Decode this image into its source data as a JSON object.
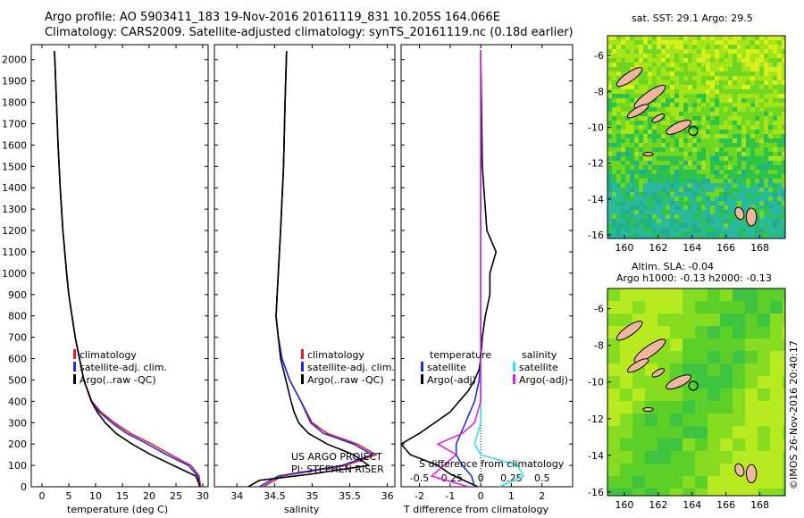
{
  "header": {
    "line1": "Argo profile: AO 5903411_183 19-Nov-2016 20161119_831 10.205S 164.066E",
    "line2": "Climatology: CARS2009. Satellite-adjusted climatology: synTS_20161119.nc (0.18d earlier)"
  },
  "colors": {
    "climatology": "#e8201c",
    "satellite": "#1a2ee0",
    "argo": "#000000",
    "sat_salinity": "#2ee6e6",
    "argo_adj_salinity": "#e020e0",
    "land": "#f0b7a0"
  },
  "project": {
    "line1": "US ARGO PROJECT",
    "line2": "PI: STEPHEN RISER"
  },
  "sst_title": "sat. SST: 29.1  Argo: 29.5",
  "sla_title1": "Altim. SLA: -0.04",
  "sla_title2": "Argo h1000: -0.13 h2000: -0.13",
  "stamp": "©IMOS 26-Nov-2016 20:40:17",
  "chart_data": [
    {
      "type": "line",
      "name": "temperature",
      "xlabel": "temperature (deg C)",
      "ylabel": "",
      "xlim": [
        -2,
        31
      ],
      "ylim": [
        2070,
        0
      ],
      "xticks": [
        0,
        5,
        10,
        15,
        20,
        25,
        30
      ],
      "yticks": [
        0,
        100,
        200,
        300,
        400,
        500,
        600,
        700,
        800,
        900,
        1000,
        1100,
        1200,
        1300,
        1400,
        1500,
        1600,
        1700,
        1800,
        1900,
        2000
      ],
      "legend": [
        "climatology",
        "satellite-adj. clim.",
        "Argo(..raw -QC)"
      ],
      "series": [
        {
          "name": "climatology",
          "depth": [
            0,
            50,
            100,
            150,
            200,
            250,
            300,
            350,
            400,
            500,
            600,
            700,
            800,
            900,
            1000,
            1200,
            1400,
            1600,
            1800,
            2000,
            2040
          ],
          "values": [
            29.6,
            29.3,
            27.8,
            24,
            20.5,
            16.5,
            13.5,
            11,
            9.3,
            7.8,
            7,
            6.2,
            5.6,
            5,
            4.6,
            3.9,
            3.4,
            3,
            2.7,
            2.4,
            2.3
          ]
        },
        {
          "name": "satellite-adj. clim.",
          "depth": [
            0,
            50,
            100,
            150,
            200,
            250,
            300,
            350,
            400,
            500,
            600,
            700,
            800,
            900,
            1000,
            1200,
            1400,
            1600,
            1800,
            2000,
            2040
          ],
          "values": [
            29.4,
            29.1,
            27.3,
            23.2,
            19.7,
            15.8,
            13,
            10.7,
            9.2,
            7.8,
            7,
            6.2,
            5.6,
            5,
            4.6,
            3.9,
            3.4,
            3,
            2.7,
            2.4,
            2.3
          ]
        },
        {
          "name": "Argo(..raw -QC)",
          "depth": [
            0,
            50,
            100,
            150,
            200,
            250,
            300,
            350,
            400,
            500,
            600,
            700,
            800,
            900,
            1000,
            1200,
            1400,
            1600,
            1800,
            2000,
            2040
          ],
          "values": [
            29.5,
            28.7,
            24.5,
            20.3,
            16.8,
            13.8,
            11.8,
            10.3,
            9.2,
            7.8,
            7,
            6.2,
            5.6,
            5,
            4.6,
            3.9,
            3.4,
            3,
            2.7,
            2.4,
            2.3
          ]
        }
      ]
    },
    {
      "type": "line",
      "name": "salinity",
      "xlabel": "salinity",
      "ylabel": "",
      "xlim": [
        33.7,
        36.1
      ],
      "ylim": [
        2070,
        0
      ],
      "xticks": [
        34,
        34.5,
        35,
        35.5,
        36
      ],
      "legend": [
        "climatology",
        "satellite-adj. clim.",
        "Argo(..raw -QC)"
      ],
      "series": [
        {
          "name": "climatology",
          "depth": [
            0,
            50,
            100,
            150,
            200,
            250,
            300,
            400,
            500,
            600,
            700,
            800,
            1000,
            1200,
            1500,
            1800,
            2040
          ],
          "values": [
            34.35,
            34.6,
            35.45,
            35.85,
            35.6,
            35.2,
            35.0,
            34.85,
            34.7,
            34.6,
            34.55,
            34.52,
            34.55,
            34.58,
            34.62,
            34.64,
            34.66
          ]
        },
        {
          "name": "satellite-adj. clim.",
          "depth": [
            0,
            50,
            100,
            150,
            200,
            250,
            300,
            400,
            500,
            600,
            700,
            800,
            1000,
            1200,
            1500,
            1800,
            2040
          ],
          "values": [
            34.3,
            34.55,
            35.4,
            35.8,
            35.55,
            35.15,
            34.98,
            34.85,
            34.7,
            34.6,
            34.55,
            34.52,
            34.55,
            34.58,
            34.62,
            34.64,
            34.66
          ]
        },
        {
          "name": "Argo(..raw -QC)",
          "depth": [
            0,
            30,
            60,
            100,
            150,
            200,
            250,
            300,
            350,
            400,
            500,
            600,
            700,
            800,
            1000,
            1200,
            1500,
            1800,
            2040
          ],
          "values": [
            34.15,
            34.3,
            35.0,
            35.75,
            35.55,
            35.2,
            34.95,
            34.82,
            34.76,
            34.72,
            34.65,
            34.58,
            34.55,
            34.52,
            34.55,
            34.58,
            34.62,
            34.64,
            34.66
          ]
        }
      ]
    },
    {
      "type": "line",
      "name": "difference from climatology",
      "xlabel": "T difference from climatology",
      "x2label": "S difference from climatology",
      "xlim": [
        -2.6,
        3.0
      ],
      "ylim": [
        2070,
        0
      ],
      "xticks": [
        -2,
        -1,
        0,
        1,
        2
      ],
      "x2ticks": [
        -0.5,
        -0.25,
        0,
        0.25,
        0.5
      ],
      "legend": {
        "temperature": [
          "satellite",
          "Argo(-adj)"
        ],
        "salinity": [
          "satellite",
          "Argo(-adj)"
        ]
      },
      "series": [
        {
          "name": "temperature satellite",
          "depth": [
            0,
            50,
            100,
            150,
            200,
            300,
            400,
            500,
            600,
            800,
            1000,
            1500,
            2040
          ],
          "values": [
            -0.2,
            -0.3,
            -0.6,
            -0.8,
            -0.8,
            -0.5,
            -0.2,
            -0.05,
            0,
            0,
            0,
            0,
            0
          ]
        },
        {
          "name": "temperature Argo(-adj)",
          "depth": [
            0,
            60,
            100,
            150,
            200,
            250,
            300,
            350,
            400,
            450,
            500,
            550,
            600,
            700,
            800,
            900,
            1000,
            1100,
            1200,
            1500,
            2040
          ],
          "values": [
            -0.1,
            -1.0,
            -1.4,
            -2.3,
            -2.6,
            -2.0,
            -1.5,
            -1.0,
            -0.7,
            -0.4,
            -0.2,
            -0.05,
            0.0,
            0.05,
            0.15,
            0.3,
            0.3,
            0.5,
            0.2,
            0.05,
            0
          ]
        },
        {
          "name": "salinity satellite",
          "depth": [
            0,
            50,
            100,
            150,
            200,
            300,
            400,
            600,
            800,
            1000,
            1500,
            2040
          ],
          "values": [
            0.15,
            0.35,
            0.3,
            0.0,
            -0.05,
            0.0,
            0.0,
            0.0,
            0.0,
            0.0,
            0.0,
            0.0
          ]
        },
        {
          "name": "salinity Argo(-adj)",
          "depth": [
            0,
            50,
            100,
            150,
            200,
            250,
            300,
            400,
            500,
            600,
            800,
            1000,
            1500,
            2040
          ],
          "values": [
            -0.1,
            -0.4,
            -0.3,
            -0.2,
            -0.35,
            -0.15,
            -0.05,
            0.0,
            0.0,
            0.0,
            0.0,
            0.0,
            0.0,
            0.0
          ]
        }
      ]
    },
    {
      "type": "heatmap",
      "name": "sat. SST map",
      "xticks": [
        160,
        162,
        164,
        166,
        168
      ],
      "yticks": [
        -6,
        -8,
        -10,
        -12,
        -14,
        -16
      ],
      "xlim": [
        159,
        169.5
      ],
      "ylim": [
        -16.2,
        -4.9
      ],
      "marker": [
        164.066,
        -10.205
      ]
    },
    {
      "type": "heatmap",
      "name": "SLA map",
      "xticks": [
        160,
        162,
        164,
        166,
        168
      ],
      "yticks": [
        -6,
        -8,
        -10,
        -12,
        -14,
        -16
      ],
      "xlim": [
        159,
        169.5
      ],
      "ylim": [
        -16.2,
        -4.9
      ],
      "marker": [
        164.066,
        -10.205
      ]
    }
  ]
}
